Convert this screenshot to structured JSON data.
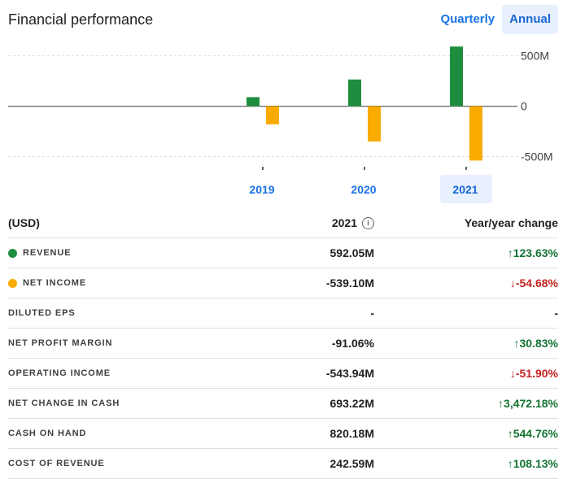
{
  "header": {
    "title": "Financial performance",
    "period_options": [
      {
        "label": "Quarterly",
        "active": false
      },
      {
        "label": "Annual",
        "active": true
      }
    ]
  },
  "chart_data": {
    "type": "bar",
    "categories": [
      "2019",
      "2020",
      "2021"
    ],
    "selected_category": "2021",
    "series": [
      {
        "name": "Revenue",
        "color": "#1e8e3e",
        "values": [
          90,
          265,
          592.05
        ]
      },
      {
        "name": "Net income",
        "color": "#f9ab00",
        "values": [
          -180,
          -350,
          -539.1
        ]
      }
    ],
    "y_ticks": [
      {
        "value": 500,
        "label": "500M"
      },
      {
        "value": 0,
        "label": "0"
      },
      {
        "value": -500,
        "label": "-500M"
      }
    ],
    "ylim": [
      -560,
      610
    ],
    "grid": true
  },
  "table": {
    "headers": {
      "label": "(USD)",
      "year": "2021",
      "change": "Year/year change"
    },
    "rows": [
      {
        "label": "REVENUE",
        "value": "592.05M",
        "change": "123.63%",
        "dir": "up",
        "dot": "#1e8e3e"
      },
      {
        "label": "NET INCOME",
        "value": "-539.10M",
        "change": "-54.68%",
        "dir": "down",
        "dot": "#f9ab00"
      },
      {
        "label": "DILUTED EPS",
        "value": "-",
        "change": "-",
        "dir": "none",
        "dot": ""
      },
      {
        "label": "NET PROFIT MARGIN",
        "value": "-91.06%",
        "change": "30.83%",
        "dir": "up",
        "dot": ""
      },
      {
        "label": "OPERATING INCOME",
        "value": "-543.94M",
        "change": "-51.90%",
        "dir": "down",
        "dot": ""
      },
      {
        "label": "NET CHANGE IN CASH",
        "value": "693.22M",
        "change": "3,472.18%",
        "dir": "up",
        "dot": ""
      },
      {
        "label": "CASH ON HAND",
        "value": "820.18M",
        "change": "544.76%",
        "dir": "up",
        "dot": ""
      },
      {
        "label": "COST OF REVENUE",
        "value": "242.59M",
        "change": "108.13%",
        "dir": "up",
        "dot": ""
      }
    ]
  }
}
